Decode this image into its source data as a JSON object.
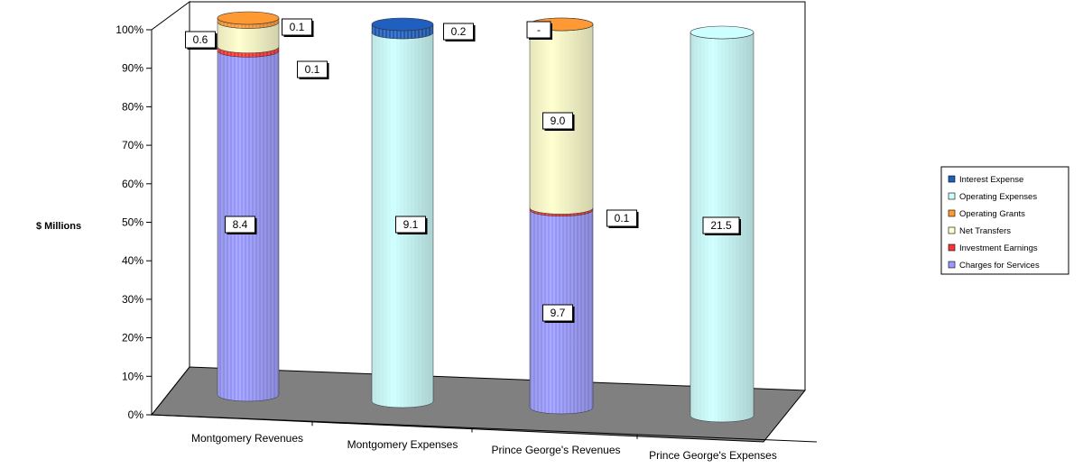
{
  "chart_data": {
    "type": "bar",
    "subtype": "stacked-100-percent-3d-cylinder",
    "ylabel": "$ Millions",
    "ylim": [
      0,
      100
    ],
    "yticks": [
      "0%",
      "10%",
      "20%",
      "30%",
      "40%",
      "50%",
      "60%",
      "70%",
      "80%",
      "90%",
      "100%"
    ],
    "categories": [
      "Montgomery Revenues",
      "Montgomery Expenses",
      "Prince George's Revenues",
      "Prince George's Expenses"
    ],
    "series": [
      {
        "name": "Charges for Services",
        "color": "#9999ff",
        "values": [
          8.4,
          null,
          9.7,
          null
        ],
        "labels": [
          "8.4",
          "",
          "9.7",
          ""
        ]
      },
      {
        "name": "Investment Earnings",
        "color": "#ff3333",
        "values": [
          0.1,
          null,
          0.1,
          null
        ],
        "labels": [
          "0.1",
          "",
          "0.1",
          ""
        ]
      },
      {
        "name": "Net Transfers",
        "color": "#ffffcc",
        "values": [
          0.6,
          null,
          9.0,
          null
        ],
        "labels": [
          "0.6",
          "",
          "9.0",
          ""
        ]
      },
      {
        "name": "Operating Grants",
        "color": "#ff9933",
        "values": [
          0.1,
          null,
          0.0,
          null
        ],
        "labels": [
          "0.1",
          "",
          "-",
          ""
        ]
      },
      {
        "name": "Operating Expenses",
        "color": "#ccffff",
        "values": [
          null,
          9.1,
          null,
          21.5
        ],
        "labels": [
          "",
          "9.1",
          "",
          "21.5"
        ]
      },
      {
        "name": "Interest Expense",
        "color": "#1f5fbf",
        "values": [
          null,
          0.2,
          null,
          null
        ],
        "labels": [
          "",
          "0.2",
          "",
          ""
        ]
      }
    ],
    "legend": {
      "position": "right",
      "entries": [
        "Interest Expense",
        "Operating Expenses",
        "Operating Grants",
        "Net Transfers",
        "Investment Earnings",
        "Charges for Services"
      ]
    },
    "grid": false,
    "floor_color": "#808080"
  }
}
